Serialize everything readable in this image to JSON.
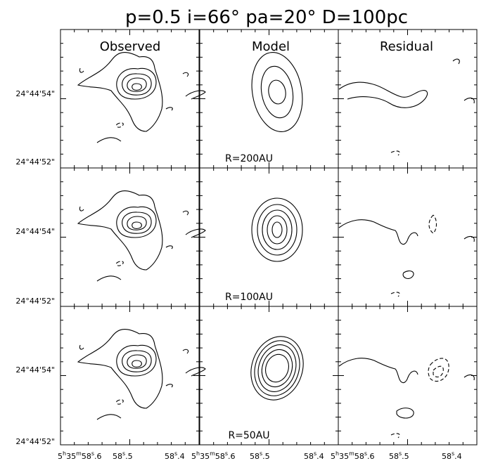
{
  "figure": {
    "title": "p=0.5  i=66°  pa=20°  D=100pc",
    "columns": [
      "Observed",
      "Model",
      "Residual"
    ],
    "model_radii": [
      "R=200AU",
      "R=100AU",
      "R=50AU"
    ],
    "y_tick_labels": [
      "24°44'54\"",
      "24°44'52\""
    ],
    "x_tick_labels": [
      "5h35m58.6",
      "58.5",
      "58.4"
    ],
    "x_tick_label_display": {
      "start": "5",
      "h": "h",
      "mid": "35",
      "m": "m",
      "sec": "58",
      "s": "s",
      "frac": "6",
      "mid_sec": "58",
      "mid_frac": "5",
      "end_sec": "58",
      "end_frac": "4"
    },
    "line_color": "#000000",
    "background_color": "#ffffff"
  }
}
